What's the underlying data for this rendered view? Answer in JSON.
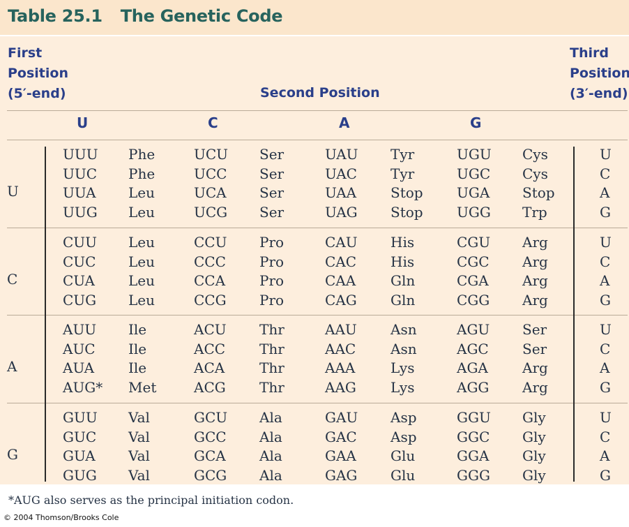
{
  "title": {
    "number": "Table 25.1",
    "text": "The Genetic Code"
  },
  "headers": {
    "first": [
      "First",
      "Position",
      "(5′-end)"
    ],
    "second": "Second Position",
    "third": [
      "Third",
      "Position",
      "(3′-end)"
    ]
  },
  "second_letters": [
    "U",
    "C",
    "A",
    "G"
  ],
  "third_letters": [
    "U",
    "C",
    "A",
    "G"
  ],
  "rows": [
    {
      "first": "U",
      "codons": [
        [
          "UUU",
          "UCU",
          "UAU",
          "UGU"
        ],
        [
          "UUC",
          "UCC",
          "UAC",
          "UGC"
        ],
        [
          "UUA",
          "UCA",
          "UAA",
          "UGA"
        ],
        [
          "UUG",
          "UCG",
          "UAG",
          "UGG"
        ]
      ],
      "amino": [
        [
          "Phe",
          "Ser",
          "Tyr",
          "Cys"
        ],
        [
          "Phe",
          "Ser",
          "Tyr",
          "Cys"
        ],
        [
          "Leu",
          "Ser",
          "Stop",
          "Stop"
        ],
        [
          "Leu",
          "Ser",
          "Stop",
          "Trp"
        ]
      ]
    },
    {
      "first": "C",
      "codons": [
        [
          "CUU",
          "CCU",
          "CAU",
          "CGU"
        ],
        [
          "CUC",
          "CCC",
          "CAC",
          "CGC"
        ],
        [
          "CUA",
          "CCA",
          "CAA",
          "CGA"
        ],
        [
          "CUG",
          "CCG",
          "CAG",
          "CGG"
        ]
      ],
      "amino": [
        [
          "Leu",
          "Pro",
          "His",
          "Arg"
        ],
        [
          "Leu",
          "Pro",
          "His",
          "Arg"
        ],
        [
          "Leu",
          "Pro",
          "Gln",
          "Arg"
        ],
        [
          "Leu",
          "Pro",
          "Gln",
          "Arg"
        ]
      ]
    },
    {
      "first": "A",
      "codons": [
        [
          "AUU",
          "ACU",
          "AAU",
          "AGU"
        ],
        [
          "AUC",
          "ACC",
          "AAC",
          "AGC"
        ],
        [
          "AUA",
          "ACA",
          "AAA",
          "AGA"
        ],
        [
          "AUG*",
          "ACG",
          "AAG",
          "AGG"
        ]
      ],
      "amino": [
        [
          "Ile",
          "Thr",
          "Asn",
          "Ser"
        ],
        [
          "Ile",
          "Thr",
          "Asn",
          "Ser"
        ],
        [
          "Ile",
          "Thr",
          "Lys",
          "Arg"
        ],
        [
          "Met",
          "Thr",
          "Lys",
          "Arg"
        ]
      ]
    },
    {
      "first": "G",
      "codons": [
        [
          "GUU",
          "GCU",
          "GAU",
          "GGU"
        ],
        [
          "GUC",
          "GCC",
          "GAC",
          "GGC"
        ],
        [
          "GUA",
          "GCA",
          "GAA",
          "GGA"
        ],
        [
          "GUG",
          "GCG",
          "GAG",
          "GGG"
        ]
      ],
      "amino": [
        [
          "Val",
          "Ala",
          "Asp",
          "Gly"
        ],
        [
          "Val",
          "Ala",
          "Asp",
          "Gly"
        ],
        [
          "Val",
          "Ala",
          "Glu",
          "Gly"
        ],
        [
          "Val",
          "Ala",
          "Glu",
          "Gly"
        ]
      ]
    }
  ],
  "footnote": "*AUG also serves as the principal initiation codon.",
  "copyright": "© 2004 Thomson/Brooks Cole",
  "colors": {
    "title_band": "#fbe6cc",
    "table_bg": "#fdeedd",
    "title_text": "#27635d",
    "header_text": "#2a3f8a"
  }
}
